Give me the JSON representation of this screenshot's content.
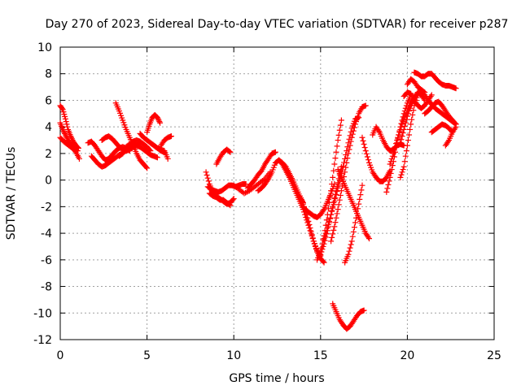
{
  "chart_data": {
    "type": "scatter",
    "title": "Day 270 of 2023, Sidereal Day-to-day VTEC variation (SDTVAR) for receiver p287",
    "xlabel": "GPS time / hours",
    "ylabel": "SDTVAR / TECUs",
    "xlim": [
      0,
      25
    ],
    "ylim": [
      -12,
      10
    ],
    "xticks": [
      0,
      5,
      10,
      15,
      20,
      25
    ],
    "yticks": [
      -12,
      -10,
      -8,
      -6,
      -4,
      -2,
      0,
      2,
      4,
      6,
      8,
      10
    ],
    "grid": true,
    "marker": "+",
    "color": "#ff0000",
    "series": [
      {
        "x": [
          0.0,
          0.15,
          0.3,
          0.45,
          0.6,
          0.75,
          0.9,
          1.05
        ],
        "y": [
          5.6,
          5.3,
          4.6,
          3.8,
          3.3,
          2.9,
          2.6,
          2.4
        ]
      },
      {
        "x": [
          0.0,
          0.15,
          0.3,
          0.45,
          0.6,
          0.75,
          0.9,
          1.1
        ],
        "y": [
          4.3,
          3.8,
          3.4,
          3.0,
          2.7,
          2.4,
          2.1,
          1.6
        ]
      },
      {
        "x": [
          0.0,
          0.2,
          0.4,
          0.6,
          0.8,
          1.0
        ],
        "y": [
          3.2,
          2.9,
          2.7,
          2.5,
          2.3,
          2.2
        ]
      },
      {
        "x": [
          1.6,
          1.8,
          2.0,
          2.2,
          2.4,
          2.6,
          2.8,
          3.0,
          3.2,
          3.4,
          3.6,
          3.8,
          4.0
        ],
        "y": [
          2.8,
          2.9,
          2.6,
          2.2,
          1.8,
          1.5,
          1.6,
          1.9,
          2.2,
          2.4,
          2.5,
          2.4,
          2.2
        ]
      },
      {
        "x": [
          1.8,
          2.0,
          2.2,
          2.4,
          2.6,
          2.8,
          3.0,
          3.2,
          3.4,
          3.6
        ],
        "y": [
          1.8,
          1.5,
          1.2,
          1.0,
          1.1,
          1.3,
          1.5,
          1.7,
          1.9,
          2.0
        ]
      },
      {
        "x": [
          2.4,
          2.6,
          2.8,
          3.0,
          3.2,
          3.4,
          3.6,
          3.8,
          4.0,
          4.2,
          4.4,
          4.6
        ],
        "y": [
          3.0,
          3.2,
          3.3,
          3.1,
          2.8,
          2.5,
          2.3,
          2.2,
          2.3,
          2.5,
          2.6,
          2.5
        ]
      },
      {
        "x": [
          3.2,
          3.4,
          3.6,
          3.8,
          4.0,
          4.2,
          4.4,
          4.6,
          4.8,
          5.0
        ],
        "y": [
          5.8,
          5.2,
          4.5,
          3.8,
          3.2,
          2.6,
          2.0,
          1.5,
          1.2,
          0.9
        ]
      },
      {
        "x": [
          3.4,
          3.6,
          3.8,
          4.0,
          4.2,
          4.4,
          4.6,
          4.8,
          5.0,
          5.2
        ],
        "y": [
          1.8,
          2.0,
          2.3,
          2.6,
          2.9,
          3.0,
          2.9,
          2.7,
          2.5,
          2.2
        ]
      },
      {
        "x": [
          3.8,
          4.0,
          4.2,
          4.4,
          4.6,
          4.8,
          5.0,
          5.2,
          5.4,
          5.6
        ],
        "y": [
          2.5,
          2.7,
          2.8,
          2.7,
          2.5,
          2.3,
          2.1,
          1.9,
          1.8,
          1.7
        ]
      },
      {
        "x": [
          4.6,
          4.8,
          5.0,
          5.2,
          5.4,
          5.6,
          5.8,
          6.0
        ],
        "y": [
          3.5,
          3.2,
          3.0,
          2.8,
          2.6,
          2.4,
          2.2,
          2.1
        ]
      },
      {
        "x": [
          5.0,
          5.15,
          5.3,
          5.45,
          5.6,
          5.75
        ],
        "y": [
          3.6,
          4.2,
          4.7,
          4.9,
          4.7,
          4.3
        ]
      },
      {
        "x": [
          5.2,
          5.4,
          5.6,
          5.8,
          6.0,
          6.2
        ],
        "y": [
          2.8,
          2.6,
          2.4,
          2.3,
          2.2,
          1.6
        ]
      },
      {
        "x": [
          5.8,
          6.0,
          6.2,
          6.4
        ],
        "y": [
          2.6,
          3.0,
          3.2,
          3.3
        ]
      },
      {
        "x": [
          8.4,
          8.6,
          8.8,
          9.0,
          9.2,
          9.4,
          9.6,
          9.8,
          10.0
        ],
        "y": [
          0.6,
          -0.3,
          -0.9,
          -1.2,
          -1.4,
          -1.6,
          -1.8,
          -1.7,
          -1.4
        ]
      },
      {
        "x": [
          8.6,
          8.8,
          9.0,
          9.2,
          9.4,
          9.6,
          9.8
        ],
        "y": [
          -1.0,
          -1.2,
          -1.3,
          -1.5,
          -1.5,
          -1.7,
          -1.9
        ]
      },
      {
        "x": [
          9.0,
          9.2,
          9.4,
          9.6,
          9.8
        ],
        "y": [
          1.2,
          1.7,
          2.1,
          2.3,
          2.1
        ]
      },
      {
        "x": [
          8.5,
          8.7,
          8.9,
          9.1,
          9.3,
          9.5,
          9.7,
          9.9,
          10.1,
          10.3,
          10.5,
          10.7
        ],
        "y": [
          -0.5,
          -0.7,
          -0.8,
          -0.9,
          -0.8,
          -0.6,
          -0.4,
          -0.4,
          -0.5,
          -0.4,
          -0.3,
          -0.3
        ]
      },
      {
        "x": [
          10.0,
          10.3,
          10.6,
          10.9,
          11.2,
          11.5,
          11.8,
          12.1
        ],
        "y": [
          -0.4,
          -0.7,
          -1.0,
          -0.8,
          -0.5,
          -0.2,
          0.1,
          0.6
        ]
      },
      {
        "x": [
          10.8,
          11.0,
          11.2,
          11.4,
          11.6,
          11.8,
          12.0,
          12.2,
          12.4
        ],
        "y": [
          -0.6,
          -0.3,
          0.0,
          0.4,
          0.7,
          1.2,
          1.6,
          2.0,
          2.1
        ]
      },
      {
        "x": [
          11.4,
          11.6,
          11.8,
          12.0,
          12.2,
          12.4,
          12.6,
          12.8,
          13.0,
          13.2,
          13.4,
          13.6,
          13.8,
          14.0
        ],
        "y": [
          -0.8,
          -0.6,
          -0.3,
          0.1,
          0.6,
          1.3,
          1.5,
          1.3,
          1.0,
          0.5,
          0.0,
          -0.6,
          -1.2,
          -1.7
        ]
      },
      {
        "x": [
          12.6,
          12.8,
          13.0,
          13.2,
          13.4,
          13.6,
          13.8,
          14.0,
          14.2,
          14.4,
          14.6,
          14.8,
          15.0
        ],
        "y": [
          1.5,
          1.2,
          0.7,
          0.2,
          -0.4,
          -1.0,
          -1.6,
          -2.2,
          -3.0,
          -3.8,
          -4.6,
          -5.3,
          -5.7
        ]
      },
      {
        "x": [
          13.8,
          14.0,
          14.2,
          14.4,
          14.6,
          14.8,
          15.0,
          15.2
        ],
        "y": [
          -1.2,
          -1.8,
          -2.6,
          -3.6,
          -4.6,
          -5.4,
          -5.9,
          -6.2
        ]
      },
      {
        "x": [
          14.0,
          14.2,
          14.4,
          14.6,
          14.8,
          15.0,
          15.2,
          15.4,
          15.6,
          15.8
        ],
        "y": [
          -2.0,
          -2.3,
          -2.5,
          -2.7,
          -2.8,
          -2.6,
          -2.2,
          -1.6,
          -1.0,
          -0.3
        ]
      },
      {
        "x": [
          14.8,
          15.0,
          15.2,
          15.4,
          15.6,
          15.8,
          16.0,
          16.2
        ],
        "y": [
          -6.0,
          -5.4,
          -4.2,
          -2.6,
          -0.8,
          1.2,
          3.0,
          4.5
        ]
      },
      {
        "x": [
          15.0,
          15.2,
          15.4,
          15.6,
          15.8,
          16.0,
          16.2
        ],
        "y": [
          -5.6,
          -4.8,
          -3.8,
          -2.6,
          -1.4,
          -0.2,
          1.0
        ]
      },
      {
        "x": [
          15.2,
          15.4,
          15.6,
          15.8,
          16.0,
          16.2,
          16.4,
          16.6,
          16.8,
          17.0,
          17.2
        ],
        "y": [
          -4.4,
          -3.6,
          -2.6,
          -1.6,
          -0.6,
          0.5,
          1.6,
          2.8,
          3.9,
          4.6,
          4.7
        ]
      },
      {
        "x": [
          15.6,
          15.8,
          16.0,
          16.2,
          16.4,
          16.6,
          16.8,
          17.0,
          17.2,
          17.4,
          17.6
        ],
        "y": [
          -4.6,
          -3.5,
          -2.2,
          -0.8,
          0.6,
          2.0,
          3.2,
          4.2,
          5.0,
          5.5,
          5.6
        ]
      },
      {
        "x": [
          16.0,
          16.2,
          16.4,
          16.6,
          16.8,
          17.0,
          17.2,
          17.4,
          17.6,
          17.8
        ],
        "y": [
          0.8,
          0.2,
          -0.4,
          -1.0,
          -1.6,
          -2.2,
          -2.8,
          -3.4,
          -4.0,
          -4.4
        ]
      },
      {
        "x": [
          16.4,
          16.6,
          16.8,
          17.0,
          17.2,
          17.4
        ],
        "y": [
          -6.2,
          -5.6,
          -4.6,
          -3.2,
          -1.8,
          -0.4
        ]
      },
      {
        "x": [
          15.7,
          15.9,
          16.1,
          16.3,
          16.5,
          16.7,
          16.9,
          17.1,
          17.3,
          17.5
        ],
        "y": [
          -9.3,
          -9.9,
          -10.5,
          -10.9,
          -11.2,
          -11.0,
          -10.6,
          -10.2,
          -9.9,
          -9.8
        ]
      },
      {
        "x": [
          17.4,
          17.6,
          17.8,
          18.0,
          18.2,
          18.4,
          18.6,
          18.8,
          19.0
        ],
        "y": [
          3.2,
          2.2,
          1.3,
          0.6,
          0.2,
          -0.1,
          -0.1,
          0.2,
          0.7
        ]
      },
      {
        "x": [
          18.0,
          18.2,
          18.4,
          18.6,
          18.8,
          19.0,
          19.2,
          19.4,
          19.6,
          19.8
        ],
        "y": [
          3.4,
          4.0,
          3.6,
          3.0,
          2.5,
          2.2,
          2.3,
          2.6,
          2.7,
          2.6
        ]
      },
      {
        "x": [
          18.8,
          19.0,
          19.2,
          19.4,
          19.6,
          19.8,
          20.0,
          20.2
        ],
        "y": [
          -0.9,
          0.2,
          1.4,
          2.8,
          4.0,
          5.0,
          5.8,
          6.4
        ]
      },
      {
        "x": [
          19.0,
          19.2,
          19.4,
          19.6,
          19.8,
          20.0,
          20.2,
          20.4,
          20.6,
          20.8
        ],
        "y": [
          1.2,
          2.0,
          3.0,
          3.8,
          4.6,
          5.2,
          5.8,
          6.2,
          6.5,
          6.6
        ]
      },
      {
        "x": [
          19.6,
          19.8,
          20.0,
          20.2,
          20.4,
          20.6,
          20.8,
          21.0
        ],
        "y": [
          2.8,
          3.8,
          4.8,
          5.6,
          6.2,
          6.6,
          6.4,
          6.0
        ]
      },
      {
        "x": [
          19.6,
          19.8,
          20.0,
          20.2,
          20.4,
          20.6
        ],
        "y": [
          0.2,
          1.0,
          2.6,
          4.2,
          5.6,
          6.4
        ]
      },
      {
        "x": [
          19.8,
          20.0,
          20.2,
          20.4,
          20.6,
          20.8,
          21.0,
          21.2,
          21.4
        ],
        "y": [
          6.3,
          6.6,
          6.5,
          6.0,
          5.6,
          5.4,
          5.6,
          6.0,
          6.4
        ]
      },
      {
        "x": [
          20.0,
          20.2,
          20.4,
          20.6,
          20.8,
          21.0
        ],
        "y": [
          7.2,
          7.6,
          7.4,
          7.0,
          6.8,
          6.6
        ]
      },
      {
        "x": [
          20.4,
          20.6,
          20.8,
          21.0,
          21.2,
          21.4,
          21.6,
          21.8,
          22.0,
          22.2,
          22.4,
          22.6,
          22.8
        ],
        "y": [
          8.1,
          8.0,
          7.8,
          7.8,
          8.0,
          8.0,
          7.7,
          7.4,
          7.2,
          7.1,
          7.1,
          7.0,
          6.9
        ]
      },
      {
        "x": [
          20.8,
          21.0,
          21.2,
          21.4,
          21.6,
          21.8,
          22.0,
          22.2,
          22.4,
          22.6,
          22.8
        ],
        "y": [
          6.6,
          6.4,
          6.0,
          5.7,
          5.4,
          5.2,
          5.0,
          4.8,
          4.6,
          4.4,
          4.2
        ]
      },
      {
        "x": [
          21.0,
          21.2,
          21.4,
          21.6,
          21.8,
          22.0,
          22.2,
          22.4,
          22.6,
          22.8
        ],
        "y": [
          5.0,
          5.2,
          5.5,
          5.8,
          5.9,
          5.6,
          5.2,
          4.8,
          4.5,
          4.2
        ]
      },
      {
        "x": [
          21.4,
          21.6,
          21.8,
          22.0,
          22.2,
          22.4,
          22.6
        ],
        "y": [
          3.6,
          3.8,
          4.0,
          4.2,
          4.1,
          3.9,
          3.6
        ]
      },
      {
        "x": [
          22.2,
          22.4,
          22.6,
          22.8
        ],
        "y": [
          2.6,
          3.0,
          3.6,
          4.0
        ]
      }
    ]
  }
}
